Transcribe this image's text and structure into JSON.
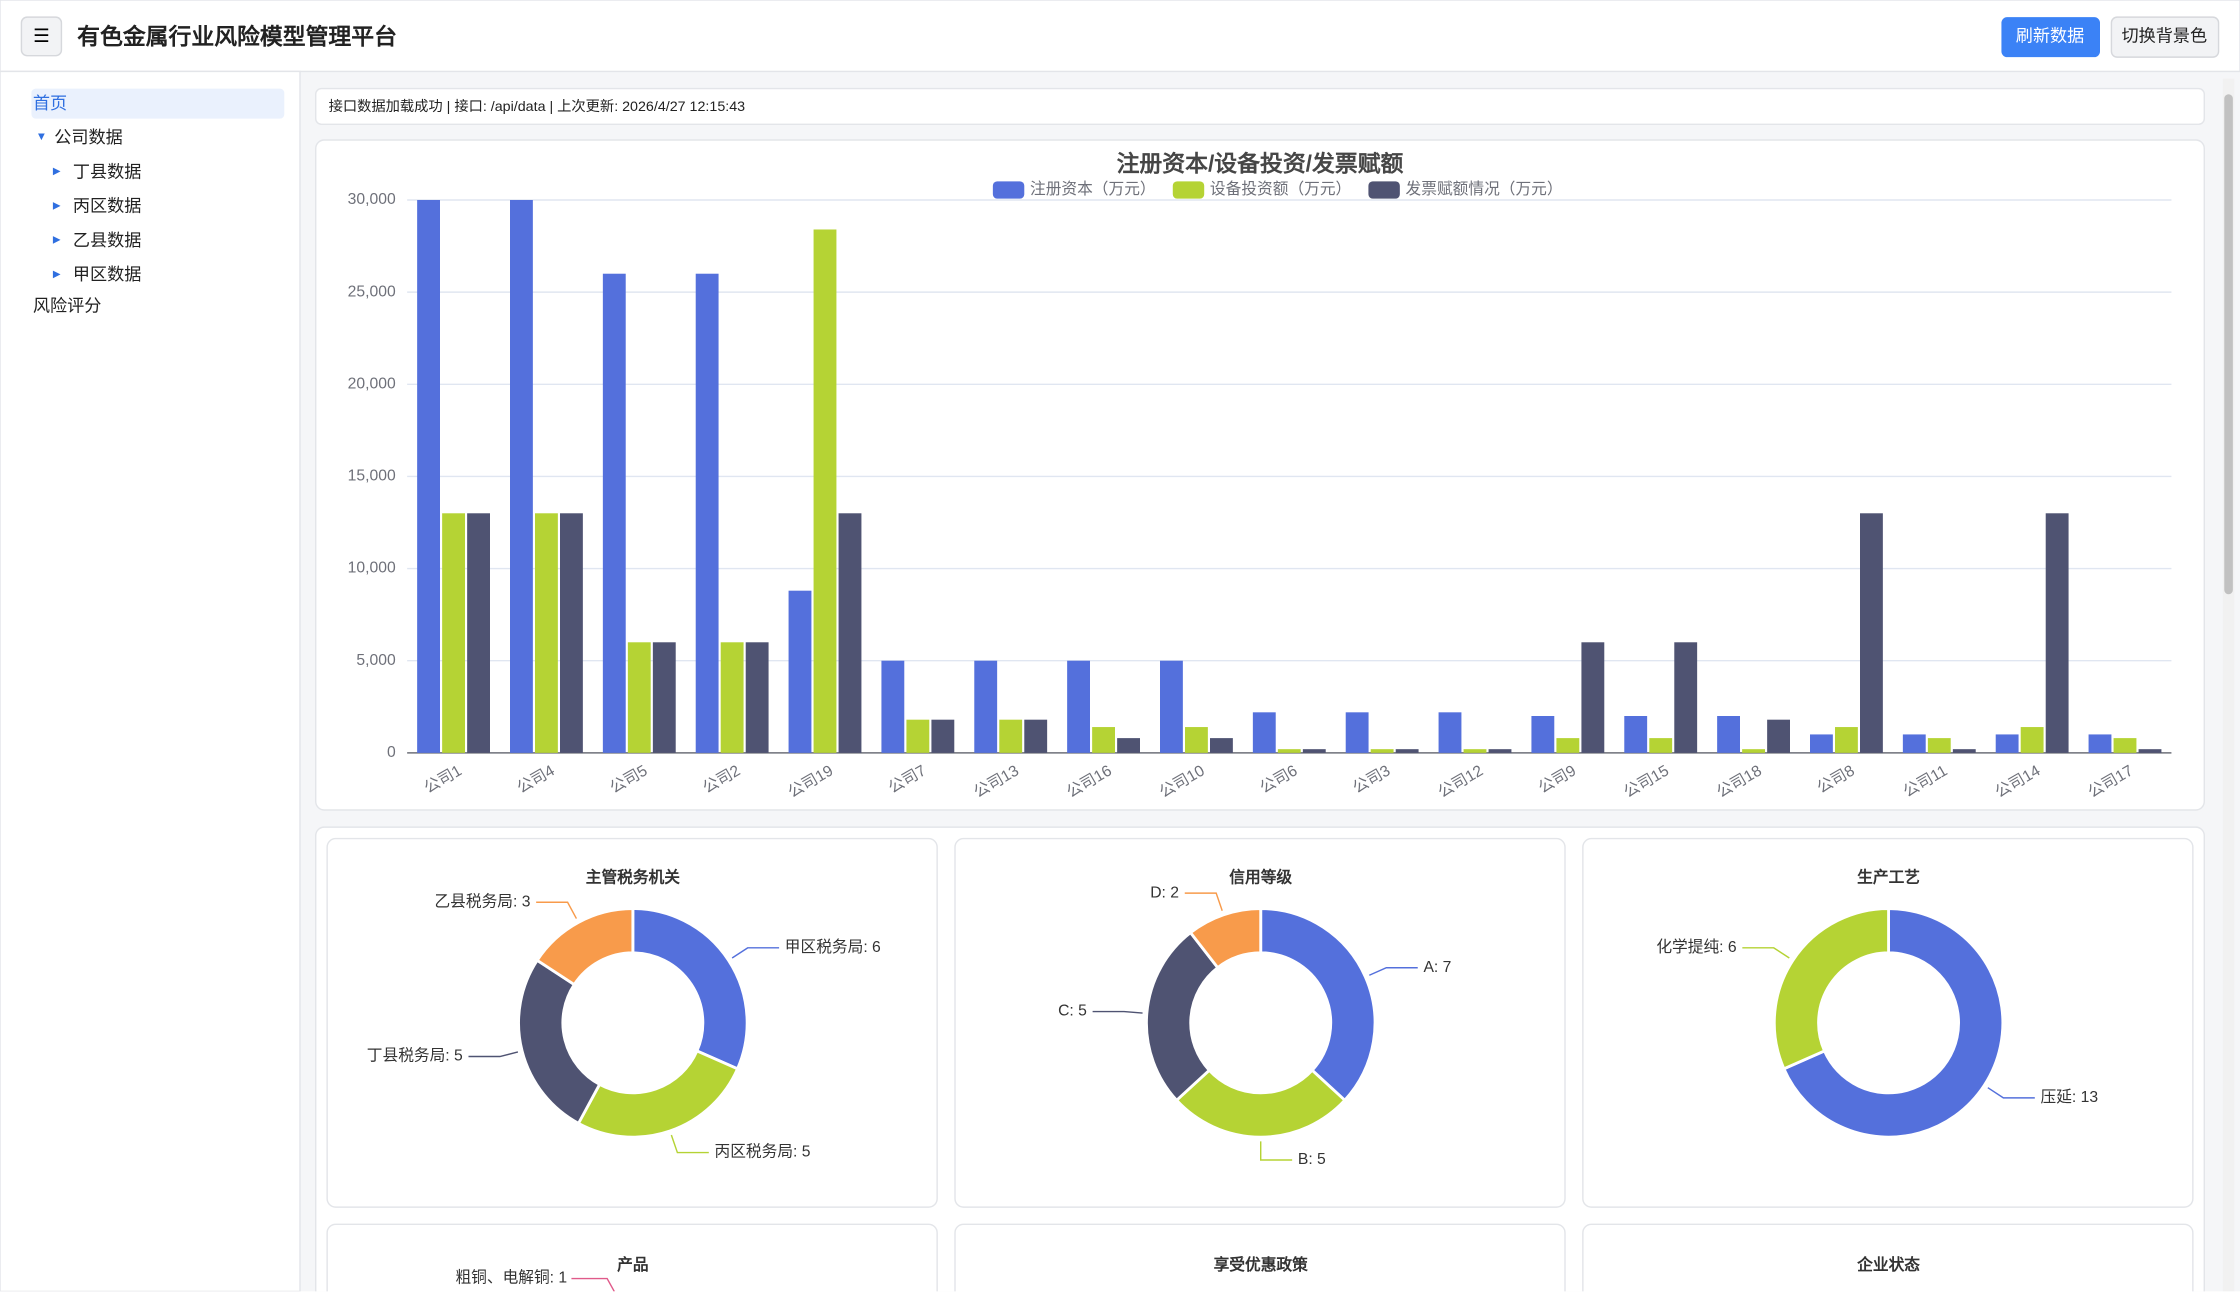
{
  "header": {
    "menu": "☰",
    "title": "有色金属行业风险模型管理平台",
    "buttons": [
      "刷新数据",
      "切换背景色"
    ]
  },
  "sidebar": {
    "items": [
      "首页",
      "公司数据"
    ],
    "children": [
      "丁县数据",
      "丙区数据",
      "乙县数据",
      "甲区数据"
    ],
    "last": "风险评分"
  },
  "status": "接口数据加载成功 | 接口: /api/data | 上次更新: 2026/4/27 12:15:43",
  "chart_data": [
    {
      "type": "bar",
      "title": "注册资本/设备投资/发票赋额",
      "categories": [
        "公司1",
        "公司4",
        "公司5",
        "公司2",
        "公司19",
        "公司7",
        "公司13",
        "公司16",
        "公司10",
        "公司6",
        "公司3",
        "公司12",
        "公司9",
        "公司15",
        "公司18",
        "公司8",
        "公司11",
        "公司14",
        "公司17"
      ],
      "series": [
        {
          "name": "注册资本（万元）",
          "color": "#5470dc",
          "values": [
            30000,
            30000,
            26000,
            26000,
            8800,
            5000,
            5000,
            5000,
            5000,
            2200,
            2200,
            2200,
            2000,
            2000,
            2000,
            1000,
            1000,
            1000,
            1000
          ]
        },
        {
          "name": "设备投资额（万元）",
          "color": "#b5d334",
          "values": [
            13000,
            13000,
            6000,
            6000,
            28400,
            1800,
            1800,
            1400,
            1400,
            200,
            200,
            200,
            800,
            800,
            200,
            1400,
            800,
            1400,
            800
          ]
        },
        {
          "name": "发票赋额情况（万元）",
          "color": "#4f5372",
          "values": [
            13000,
            13000,
            6000,
            6000,
            13000,
            1800,
            1800,
            800,
            800,
            200,
            200,
            200,
            6000,
            6000,
            1800,
            13000,
            200,
            13000,
            200
          ]
        }
      ],
      "ylim": [
        0,
        30000
      ],
      "yticks": [
        0,
        {
          "value": 5000,
          "label": "5,000"
        },
        {
          "value": 10000,
          "label": "10,000"
        },
        {
          "value": 15000,
          "label": "15,000"
        },
        {
          "value": 20000,
          "label": "20,000"
        },
        {
          "value": 25000,
          "label": "25,000"
        },
        {
          "value": 30000,
          "label": "30,000"
        }
      ],
      "grid": true,
      "legend": "top"
    },
    {
      "type": "donut",
      "title": "主管税务机关",
      "categories": [
        "甲区税务局",
        "丙区税务局",
        "丁县税务局",
        "乙县税务局"
      ],
      "values": [
        6,
        5,
        5,
        3
      ],
      "value_labels": [
        "甲区税务局: 6",
        "丙区税务局: 5",
        "丁县税务局: 5",
        "乙县税务局: 3"
      ],
      "colors": [
        "#5470dc",
        "#b5d334",
        "#4f5372",
        "#f89b4b"
      ]
    },
    {
      "type": "donut",
      "title": "信用等级",
      "categories": [
        "A",
        "B",
        "C",
        "D"
      ],
      "values": [
        7,
        5,
        5,
        2
      ],
      "value_labels": [
        "A: 7",
        "B: 5",
        "C: 5",
        "D: 2"
      ],
      "colors": [
        "#5470dc",
        "#b5d334",
        "#4f5372",
        "#f89b4b"
      ]
    },
    {
      "type": "donut",
      "title": "生产工艺",
      "categories": [
        "压延",
        "化学提纯"
      ],
      "values": [
        13,
        6
      ],
      "value_labels": [
        "压延: 13",
        "化学提纯: 6"
      ],
      "colors": [
        "#5470dc",
        "#b5d334"
      ]
    }
  ],
  "lower_panels": [
    {
      "title": "产品",
      "annotation": "粗铜、电解铜: 1"
    },
    {
      "title": "享受优惠政策"
    },
    {
      "title": "企业状态"
    }
  ]
}
